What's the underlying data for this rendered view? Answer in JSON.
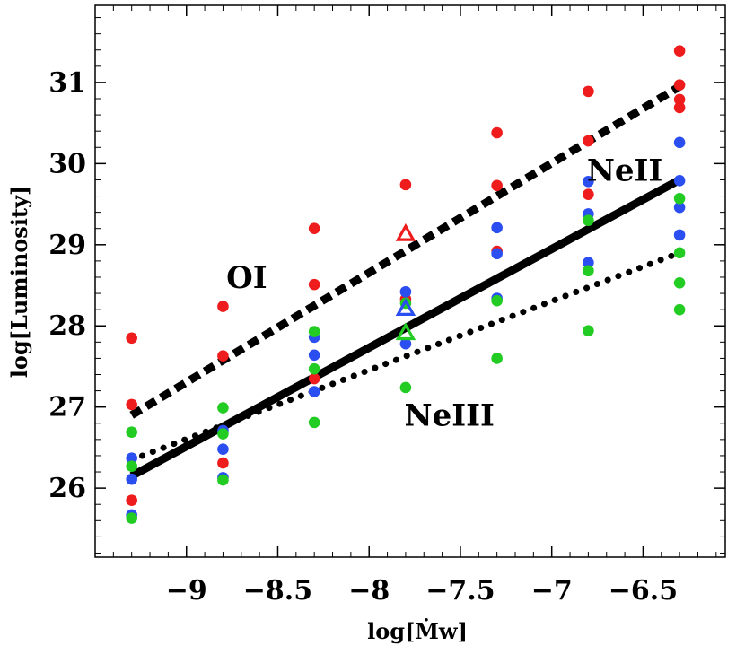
{
  "chart_data": {
    "type": "scatter",
    "title": "",
    "xlabel": "log[Ṁw]",
    "ylabel": "log[Luminosity]",
    "xlim": [
      -9.5,
      -6.05
    ],
    "ylim": [
      25.15,
      31.95
    ],
    "xticks": [
      -9,
      -8.5,
      -8,
      -7.5,
      -7,
      -6.5
    ],
    "xtick_labels": [
      "−9",
      "−8.5",
      "−8",
      "−7.5",
      "−7",
      "−6.5"
    ],
    "yticks": [
      26,
      27,
      28,
      29,
      30,
      31
    ],
    "ytick_labels": [
      "26",
      "27",
      "28",
      "29",
      "30",
      "31"
    ],
    "colors": {
      "OI": "#ee1c1c",
      "NeII": "#2b4ef0",
      "NeIII": "#22cc22"
    },
    "series": [
      {
        "name": "OI",
        "color": "#ee1c1c",
        "points": [
          [
            -9.3,
            27.85
          ],
          [
            -9.3,
            27.03
          ],
          [
            -9.3,
            25.85
          ],
          [
            -8.8,
            28.24
          ],
          [
            -8.8,
            27.63
          ],
          [
            -8.8,
            26.31
          ],
          [
            -8.3,
            29.2
          ],
          [
            -8.3,
            28.51
          ],
          [
            -8.3,
            27.35
          ],
          [
            -7.8,
            29.74
          ],
          [
            -7.8,
            28.33
          ],
          [
            -7.3,
            30.38
          ],
          [
            -7.3,
            29.73
          ],
          [
            -7.3,
            28.92
          ],
          [
            -6.8,
            30.89
          ],
          [
            -6.8,
            30.28
          ],
          [
            -6.8,
            29.62
          ],
          [
            -6.3,
            31.39
          ],
          [
            -6.3,
            30.97
          ],
          [
            -6.3,
            30.79
          ],
          [
            -6.3,
            30.69
          ]
        ],
        "fit_line": {
          "style": "dashed",
          "x": [
            -9.3,
            -6.3
          ],
          "y": [
            26.9,
            30.95
          ]
        },
        "triangle": [
          -7.8,
          29.14
        ]
      },
      {
        "name": "NeII",
        "color": "#2b4ef0",
        "points": [
          [
            -9.3,
            26.37
          ],
          [
            -9.3,
            26.11
          ],
          [
            -9.3,
            25.67
          ],
          [
            -8.8,
            26.71
          ],
          [
            -8.8,
            26.48
          ],
          [
            -8.8,
            26.13
          ],
          [
            -8.3,
            27.86
          ],
          [
            -8.3,
            27.64
          ],
          [
            -8.3,
            27.19
          ],
          [
            -7.8,
            28.42
          ],
          [
            -7.8,
            27.78
          ],
          [
            -7.3,
            29.21
          ],
          [
            -7.3,
            28.89
          ],
          [
            -7.3,
            28.34
          ],
          [
            -6.8,
            29.78
          ],
          [
            -6.8,
            29.38
          ],
          [
            -6.8,
            28.78
          ],
          [
            -6.3,
            30.26
          ],
          [
            -6.3,
            29.79
          ],
          [
            -6.3,
            29.46
          ],
          [
            -6.3,
            29.12
          ]
        ],
        "fit_line": {
          "style": "solid",
          "x": [
            -9.3,
            -6.3
          ],
          "y": [
            26.15,
            29.8
          ]
        },
        "triangle": [
          -7.8,
          28.22
        ]
      },
      {
        "name": "NeIII",
        "color": "#22cc22",
        "points": [
          [
            -9.3,
            26.69
          ],
          [
            -9.3,
            26.27
          ],
          [
            -9.3,
            25.63
          ],
          [
            -8.8,
            26.99
          ],
          [
            -8.8,
            26.67
          ],
          [
            -8.8,
            26.1
          ],
          [
            -8.3,
            27.93
          ],
          [
            -8.3,
            27.47
          ],
          [
            -8.3,
            26.81
          ],
          [
            -7.8,
            28.28
          ],
          [
            -7.8,
            27.24
          ],
          [
            -7.3,
            28.31
          ],
          [
            -7.3,
            27.6
          ],
          [
            -6.8,
            29.3
          ],
          [
            -6.8,
            28.68
          ],
          [
            -6.8,
            27.94
          ],
          [
            -6.3,
            29.57
          ],
          [
            -6.3,
            28.9
          ],
          [
            -6.3,
            28.53
          ],
          [
            -6.3,
            28.2
          ]
        ],
        "fit_line": {
          "style": "dotted",
          "x": [
            -9.3,
            -6.3
          ],
          "y": [
            26.35,
            28.9
          ]
        },
        "triangle": [
          -7.8,
          27.92
        ]
      }
    ],
    "annotations": [
      {
        "text": "OI",
        "x": -8.67,
        "y": 28.6
      },
      {
        "text": "NeII",
        "x": -6.6,
        "y": 29.92
      },
      {
        "text": "NeIII",
        "x": -7.56,
        "y": 26.9
      }
    ]
  }
}
